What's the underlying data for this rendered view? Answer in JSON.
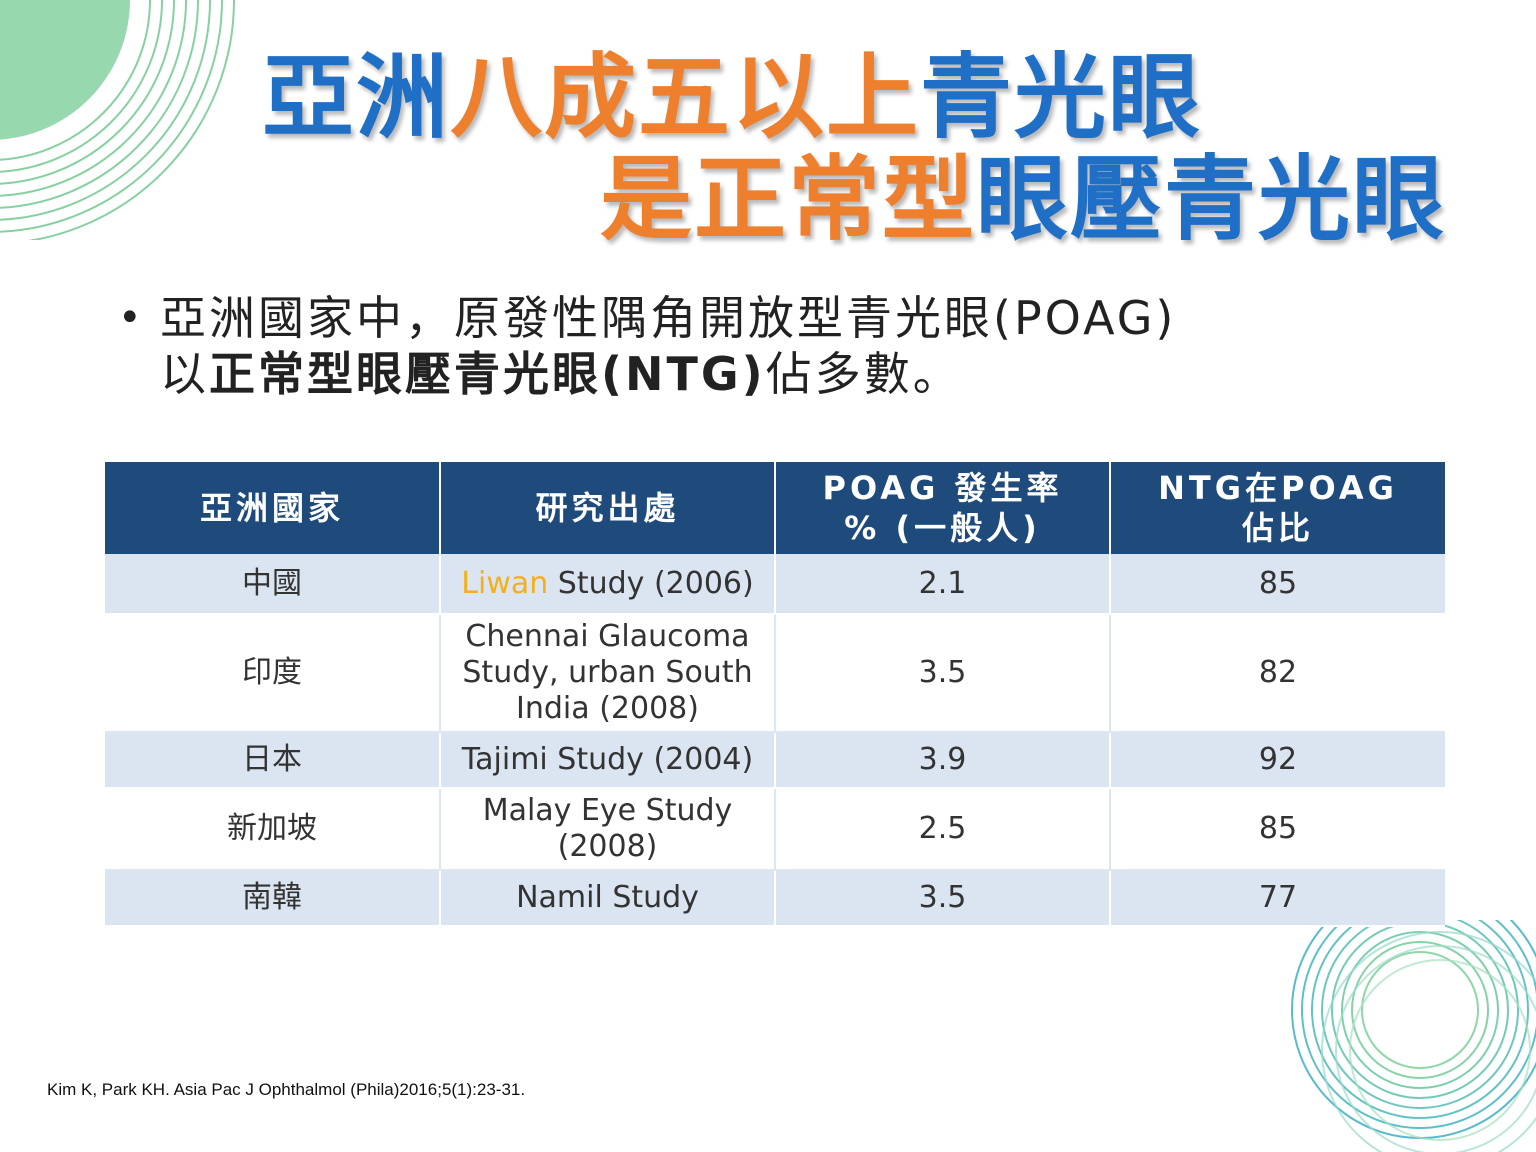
{
  "title": {
    "line1": [
      {
        "text": "亞洲",
        "color": "#1f6fc6"
      },
      {
        "text": "八成五以上",
        "color": "#ee7f2d"
      },
      {
        "text": "青光眼",
        "color": "#1f6fc6"
      }
    ],
    "line2": [
      {
        "text": "是正常型",
        "color": "#ee7f2d"
      },
      {
        "text": "眼壓青光眼",
        "color": "#1f6fc6"
      }
    ]
  },
  "bullet": {
    "marker": "•",
    "line1": "亞洲國家中，原發性隅角開放型青光眼(POAG)",
    "line2_prefix": "以",
    "line2_bold": "正常型眼壓青光眼(NTG)",
    "line2_suffix": "佔多數。"
  },
  "table": {
    "headers": [
      {
        "line1": "亞洲國家",
        "line2": ""
      },
      {
        "line1": "研究出處",
        "line2": ""
      },
      {
        "line1": "POAG 發生率",
        "line2": "% (一般人)"
      },
      {
        "line1": "NTG在POAG",
        "line2": "佔比"
      }
    ],
    "rows": [
      {
        "country": "中國",
        "study_highlight": "Liwan",
        "study_rest": " Study (2006)",
        "incidence": "2.1",
        "ntg_share": "85"
      },
      {
        "country": "印度",
        "study_highlight": "",
        "study_rest": "Chennai Glaucoma Study, urban South India (2008)",
        "incidence": "3.5",
        "ntg_share": "82"
      },
      {
        "country": "日本",
        "study_highlight": "",
        "study_rest": "Tajimi Study (2004)",
        "incidence": "3.9",
        "ntg_share": "92",
        "ntg_highlight_color": "#c0182a"
      },
      {
        "country": "新加坡",
        "study_highlight": "",
        "study_rest": "Malay Eye Study (2008)",
        "incidence": "2.5",
        "ntg_share": "85"
      },
      {
        "country": "南韓",
        "study_highlight": "",
        "study_rest": "Namil Study",
        "incidence": "3.5",
        "ntg_share": "77"
      }
    ]
  },
  "citation": "Kim K, Park KH. Asia Pac J Ophthalmol (Phila)2016;5(1):23-31.",
  "colors": {
    "header_bg": "#1e4a7c",
    "row_alt_bg": "#dbe5f1",
    "title_blue": "#1f6fc6",
    "title_orange": "#ee7f2d",
    "study_highlight": "#f2b01e",
    "deco_green": "#7fcf9a",
    "deco_teal": "#5cc2c6"
  }
}
